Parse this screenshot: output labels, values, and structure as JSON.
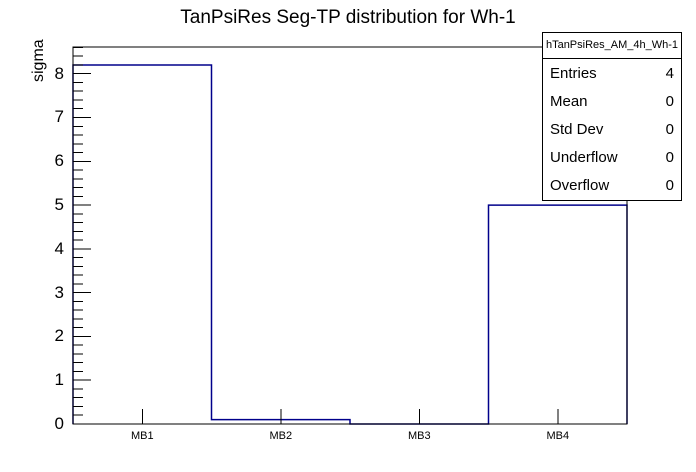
{
  "chart_data": {
    "type": "bar",
    "style": "root-histogram-outline",
    "title": "TanPsiRes Seg-TP distribution for Wh-1",
    "categories": [
      "MB1",
      "MB2",
      "MB3",
      "MB4"
    ],
    "values": [
      8.2,
      0.1,
      0,
      5.0
    ],
    "xlabel": "",
    "ylabel": "sigma",
    "ylim": [
      0,
      8.61
    ],
    "yticks": [
      "0",
      "1",
      "2",
      "3",
      "4",
      "5",
      "6",
      "7",
      "8"
    ],
    "minor_tick_step": 0.2,
    "grid": false,
    "legend": false,
    "line_color": "#00008b",
    "axis_color": "#000000",
    "background_color": "#ffffff"
  },
  "stats_box": {
    "header": "hTanPsiRes_AM_4h_Wh-1",
    "rows": [
      {
        "label": "Entries",
        "value": "4"
      },
      {
        "label": "Mean",
        "value": "0"
      },
      {
        "label": "Std Dev",
        "value": "0"
      },
      {
        "label": "Underflow",
        "value": "0"
      },
      {
        "label": "Overflow",
        "value": "0"
      }
    ]
  }
}
